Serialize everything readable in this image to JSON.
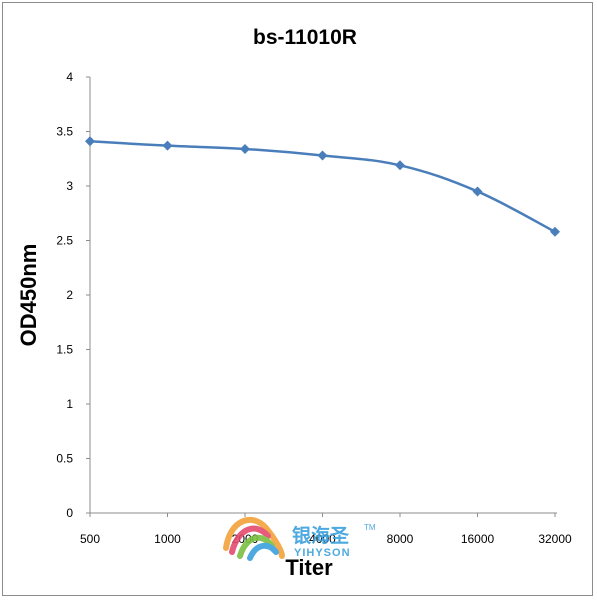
{
  "chart_data": {
    "type": "line",
    "title": "bs-11010R",
    "xlabel": "Titer",
    "ylabel": "OD450nm",
    "categories": [
      "500",
      "1000",
      "2000",
      "4000",
      "8000",
      "16000",
      "32000"
    ],
    "series": [
      {
        "values": [
          3.41,
          3.37,
          3.34,
          3.28,
          3.19,
          2.95,
          2.58
        ],
        "color": "#4a7ebb"
      }
    ],
    "ylim": [
      0,
      4
    ],
    "yticks": [
      "0",
      "0.5",
      "1",
      "1.5",
      "2",
      "2.5",
      "3",
      "3.5",
      "4"
    ],
    "grid": false,
    "legend": "none"
  },
  "watermark": {
    "cn": "银海圣",
    "en": "YIHYSON",
    "tm": "TM"
  }
}
